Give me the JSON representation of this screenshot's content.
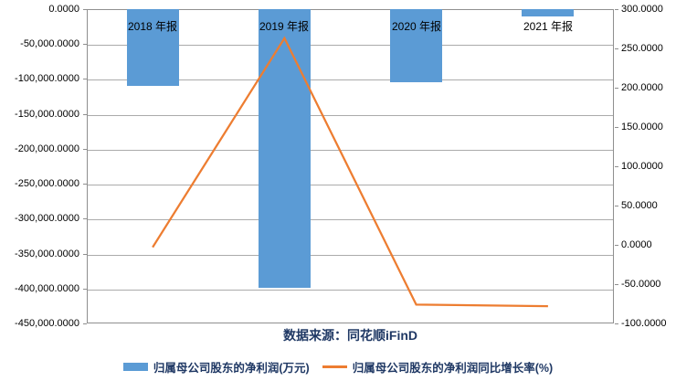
{
  "chart": {
    "source_label": "数据来源：同花顺iFinD",
    "legend": [
      {
        "label": "归属母公司股东的净利润(万元)",
        "swatch": "bar",
        "color": "#5B9BD5"
      },
      {
        "label": "归属母公司股东的净利润同比增长率(%)",
        "swatch": "line",
        "color": "#ED7D31"
      }
    ]
  },
  "chart_data": {
    "type": "bar+line combo",
    "categories": [
      "2018 年报",
      "2019 年报",
      "2020 年报",
      "2021 年报"
    ],
    "series": [
      {
        "name": "归属母公司股东的净利润(万元)",
        "type": "bar",
        "axis": "left",
        "color": "#5B9BD5",
        "values": [
          -110000,
          -399000,
          -105000,
          -10500
        ]
      },
      {
        "name": "归属母公司股东的净利润同比增长率(%)",
        "type": "line",
        "axis": "right",
        "color": "#ED7D31",
        "values": [
          -3,
          263,
          -76,
          -78
        ]
      }
    ],
    "left_axis": {
      "min": -450000,
      "max": 0,
      "ticks": [
        "0.0000",
        "-50,000.0000",
        "-100,000.0000",
        "-150,000.0000",
        "-200,000.0000",
        "-250,000.0000",
        "-300,000.0000",
        "-350,000.0000",
        "-400,000.0000",
        "-450,000.0000"
      ]
    },
    "right_axis": {
      "min": -100,
      "max": 300,
      "ticks": [
        "300.0000",
        "250.0000",
        "200.0000",
        "150.0000",
        "100.0000",
        "50.0000",
        "0.0000",
        "-50.0000",
        "-100.0000"
      ]
    },
    "grid": "horizontal",
    "legend_position": "bottom",
    "category_labels_position": "top-inside"
  }
}
